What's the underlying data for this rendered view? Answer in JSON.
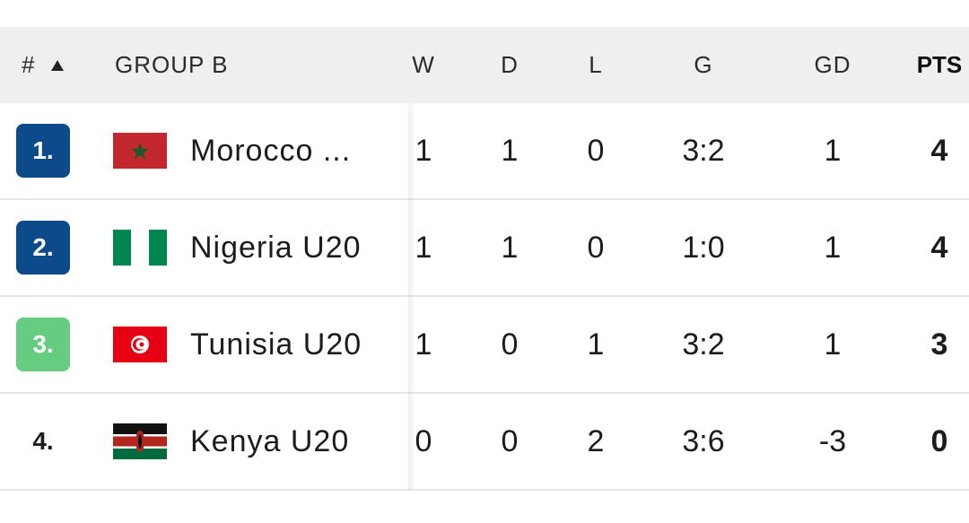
{
  "header": {
    "rank": "#",
    "group": "GROUP B",
    "columns": [
      "W",
      "D",
      "L",
      "G",
      "GD",
      "PTS"
    ]
  },
  "rows": [
    {
      "rank": "1.",
      "team": "Morocco ...",
      "cells": [
        1,
        1,
        0,
        "3:2",
        1,
        4
      ]
    },
    {
      "rank": "2.",
      "team": "Nigeria U20",
      "cells": [
        1,
        1,
        0,
        "1:0",
        1,
        4
      ]
    },
    {
      "rank": "3.",
      "team": "Tunisia U20",
      "cells": [
        1,
        0,
        1,
        "3:2",
        1,
        3
      ]
    },
    {
      "rank": "4.",
      "team": "Kenya U20",
      "cells": [
        0,
        0,
        2,
        "3:6",
        -3,
        0
      ]
    }
  ]
}
